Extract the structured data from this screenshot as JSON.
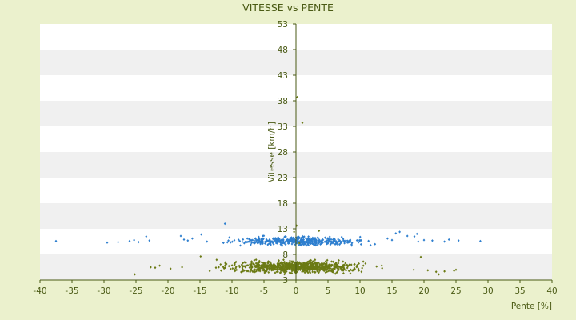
{
  "chart_data": {
    "type": "scatter",
    "title": "VITESSE vs PENTE",
    "xlabel": "Pente [%]",
    "ylabel": "Vitesse [km/h]",
    "xlim": [
      -40,
      40
    ],
    "ylim": [
      3,
      53
    ],
    "x_ticks": [
      -40,
      -35,
      -30,
      -25,
      -20,
      -15,
      -10,
      -5,
      0,
      5,
      10,
      15,
      20,
      25,
      30,
      35,
      40
    ],
    "y_ticks": [
      3,
      8,
      13,
      18,
      23,
      28,
      33,
      38,
      43,
      48,
      53
    ],
    "y_axis_position": "x=0",
    "grid": "horizontal bands",
    "legend": "none",
    "colors": {
      "background": "#ebf1cd",
      "plot_band_light": "#ffffff",
      "plot_band_dark": "#f0f0f0",
      "axis": "#4a5a14",
      "text": "#4a5a14",
      "series_1": "#2e7fcf",
      "series_2": "#6b7a14"
    },
    "series": [
      {
        "color": "#2e7fcf",
        "marker": "small-diamond",
        "points": [
          [
            -37.5,
            10.6
          ],
          [
            -29.5,
            10.3
          ],
          [
            -27.8,
            10.4
          ],
          [
            -26.0,
            10.6
          ],
          [
            -25.3,
            10.8
          ],
          [
            -24.6,
            10.4
          ],
          [
            -23.4,
            11.5
          ],
          [
            -22.9,
            10.7
          ],
          [
            -18.0,
            11.6
          ],
          [
            -17.5,
            10.9
          ],
          [
            -16.9,
            10.7
          ],
          [
            -16.2,
            11.1
          ],
          [
            -14.8,
            11.9
          ],
          [
            -13.9,
            10.5
          ],
          [
            -11.1,
            14.0
          ],
          [
            -10.4,
            11.3
          ],
          [
            -7.6,
            11.1
          ],
          [
            -5.2,
            11.6
          ],
          [
            -4.1,
            10.8
          ],
          [
            -2.6,
            11.0
          ],
          [
            0.6,
            11.2
          ],
          [
            1.2,
            10.9
          ],
          [
            3.0,
            11.2
          ],
          [
            14.3,
            11.1
          ],
          [
            15.0,
            10.8
          ],
          [
            15.6,
            12.1
          ],
          [
            16.2,
            12.4
          ],
          [
            17.4,
            11.6
          ],
          [
            18.5,
            11.5
          ],
          [
            18.9,
            12.0
          ],
          [
            19.1,
            10.5
          ],
          [
            20.0,
            10.8
          ],
          [
            21.3,
            10.7
          ],
          [
            23.2,
            10.5
          ],
          [
            23.9,
            10.9
          ],
          [
            25.4,
            10.7
          ],
          [
            28.8,
            10.6
          ]
        ],
        "cluster": {
          "x_range": [
            -15.5,
            12.5
          ],
          "y_center": 10.6,
          "y_spread": 0.7,
          "count": 420,
          "x_center": 0,
          "x_spread": 7
        }
      },
      {
        "color": "#6b7a14",
        "marker": "small-diamond",
        "points": [
          [
            -25.2,
            4.1
          ],
          [
            -22.7,
            5.5
          ],
          [
            -22.0,
            5.4
          ],
          [
            -21.3,
            5.8
          ],
          [
            -19.6,
            5.2
          ],
          [
            -17.8,
            5.5
          ],
          [
            -14.9,
            7.6
          ],
          [
            -12.5,
            5.4
          ],
          [
            0.2,
            38.7
          ],
          [
            1.0,
            33.7
          ],
          [
            0.1,
            13.6
          ],
          [
            -0.3,
            12.4
          ],
          [
            3.6,
            12.6
          ],
          [
            0.5,
            10.2
          ],
          [
            18.4,
            5.0
          ],
          [
            19.5,
            7.5
          ],
          [
            20.6,
            4.9
          ],
          [
            21.9,
            4.6
          ],
          [
            22.3,
            4.1
          ],
          [
            23.2,
            4.7
          ],
          [
            24.7,
            4.8
          ],
          [
            25.0,
            5.0
          ]
        ],
        "cluster": {
          "x_range": [
            -15,
            19
          ],
          "y_center": 5.6,
          "y_spread": 1.0,
          "count": 820,
          "x_center": 0,
          "x_spread": 7
        }
      }
    ]
  }
}
